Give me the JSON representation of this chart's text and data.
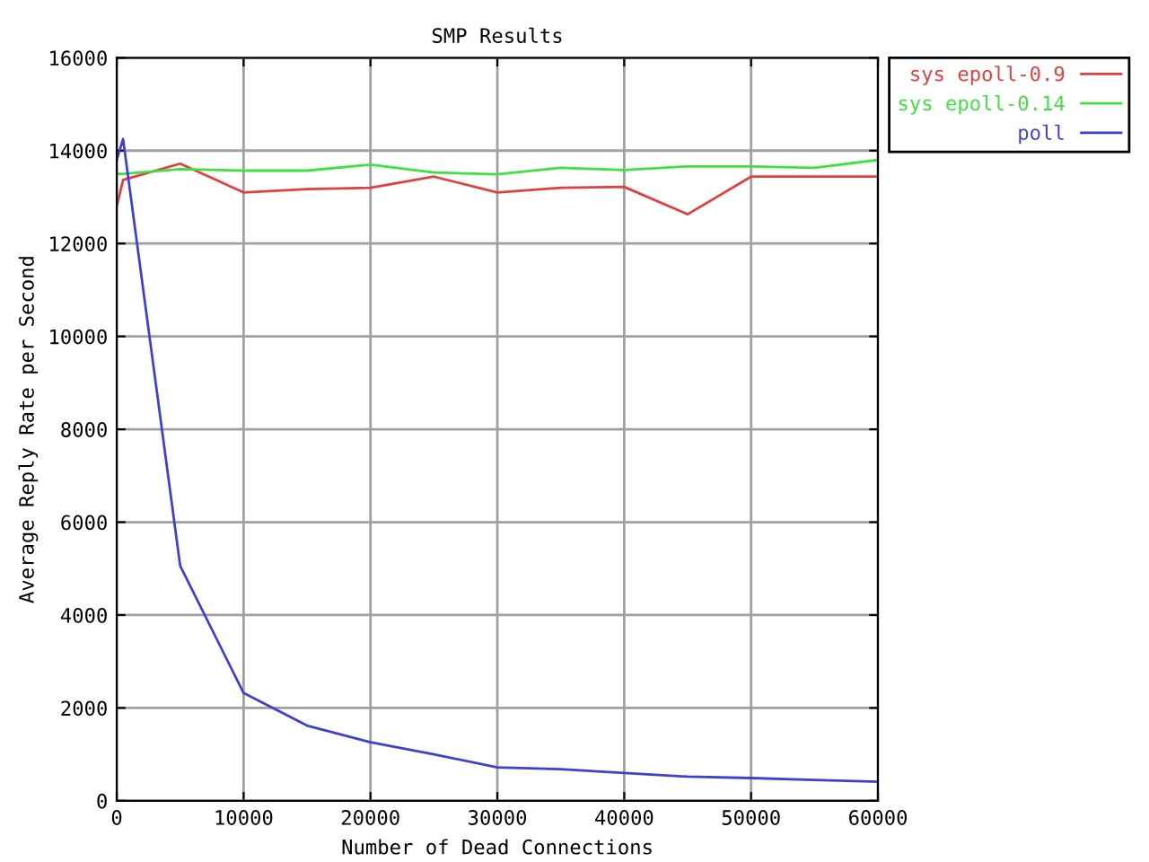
{
  "chart_data": {
    "type": "line",
    "title": "SMP Results",
    "xlabel": "Number of Dead Connections",
    "ylabel": "Average Reply Rate per Second",
    "xlim": [
      0,
      60000
    ],
    "xticks": [
      0,
      10000,
      20000,
      30000,
      40000,
      50000,
      60000
    ],
    "ylim": [
      0,
      16000
    ],
    "yticks": [
      0,
      2000,
      4000,
      6000,
      8000,
      10000,
      12000,
      14000,
      16000
    ],
    "grid": true,
    "legend": "top right",
    "marker": "none",
    "line_style": "solid",
    "series": [
      {
        "name": "sys epoll-0.9",
        "color": "#e04040",
        "x": [
          0,
          500,
          5000,
          10000,
          15000,
          20000,
          25000,
          30000,
          35000,
          40000,
          45000,
          50000,
          55000,
          60000
        ],
        "values": [
          12800,
          13370,
          13720,
          13100,
          13170,
          13200,
          13440,
          13100,
          13200,
          13220,
          12630,
          13440,
          13440,
          13440
        ]
      },
      {
        "name": "sys epoll-0.14",
        "color": "#40e040",
        "x": [
          0,
          500,
          5000,
          10000,
          15000,
          20000,
          25000,
          30000,
          35000,
          40000,
          45000,
          50000,
          55000,
          60000
        ],
        "values": [
          13500,
          13500,
          13600,
          13570,
          13570,
          13700,
          13530,
          13490,
          13630,
          13580,
          13660,
          13660,
          13630,
          13800
        ]
      },
      {
        "name": "poll",
        "color": "#4040d0",
        "x": [
          0,
          500,
          5000,
          10000,
          15000,
          20000,
          25000,
          30000,
          35000,
          40000,
          45000,
          50000,
          55000,
          60000
        ],
        "values": [
          13800,
          14250,
          5060,
          2320,
          1620,
          1260,
          1000,
          720,
          680,
          600,
          520,
          490,
          450,
          410
        ]
      }
    ]
  }
}
